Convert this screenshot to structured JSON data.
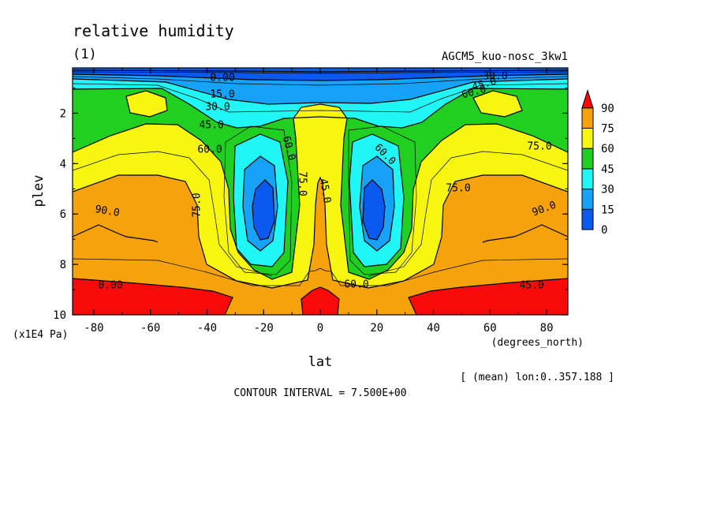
{
  "chart_data": {
    "type": "contour",
    "title": "relative humidity",
    "subtitle": "(1)",
    "experiment": "AGCM5_kuo-nosc_3kw1",
    "xlabel": "lat",
    "xunits": "(degrees_north)",
    "ylabel": "plev",
    "yunits": "(x1E4 Pa)",
    "xlim": [
      -87.5,
      87.5
    ],
    "ylim": [
      10,
      0.2
    ],
    "xticks": [
      "-80",
      "-60",
      "-40",
      "-20",
      "0",
      "20",
      "40",
      "60",
      "80"
    ],
    "xtick_values": [
      -80,
      -60,
      -40,
      -20,
      0,
      20,
      40,
      60,
      80
    ],
    "yticks": [
      "2",
      "4",
      "6",
      "8",
      "10"
    ],
    "ytick_values": [
      2,
      4,
      6,
      8,
      10
    ],
    "averaging": "[ (mean) lon:0..357.188 ]",
    "contour_interval": "CONTOUR INTERVAL = 7.500E+00",
    "colorbar": {
      "labels": [
        "0",
        "15",
        "30",
        "45",
        "60",
        "75",
        "90"
      ],
      "colors": [
        "#0a5af0",
        "#16a2f6",
        "#21f6f6",
        "#20cf20",
        "#f6f611",
        "#f6a20a",
        "#f60a0a"
      ]
    },
    "contour_labels": [
      "0.00",
      "15.0",
      "30.0",
      "45.0",
      "60.0",
      "75.0",
      "90.0",
      "0.00",
      "30.0",
      "45.0",
      "60.0",
      "75.0",
      "90.0",
      "45.0",
      "60.0",
      "75.0",
      "45.0",
      "60.0",
      "75.0",
      "60.0"
    ]
  }
}
